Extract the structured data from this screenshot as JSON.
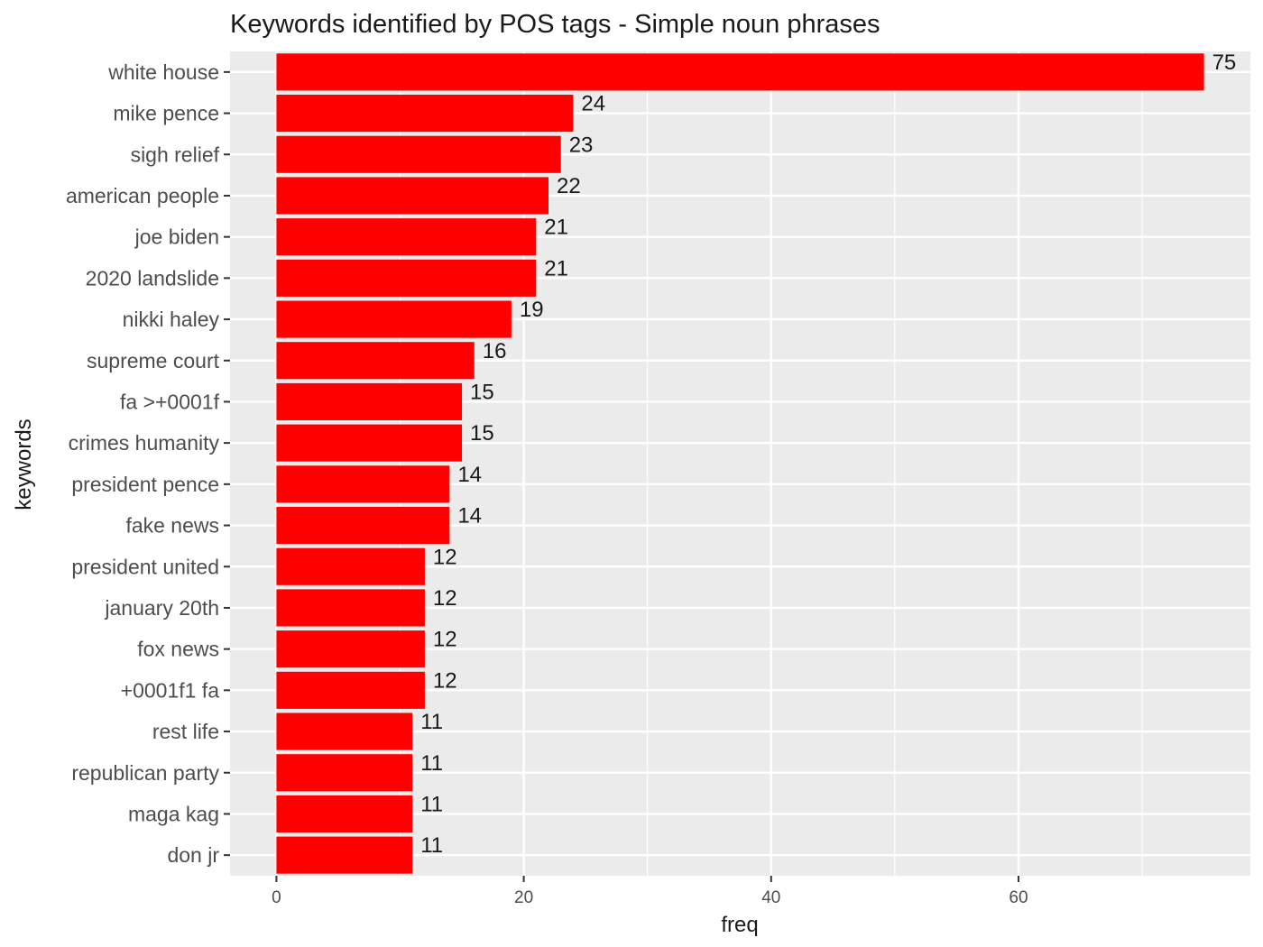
{
  "chart_data": {
    "type": "bar",
    "orientation": "horizontal",
    "title": "Keywords identified by POS tags - Simple noun phrases",
    "xlabel": "freq",
    "ylabel": "keywords",
    "xlim": [
      -3.75,
      78.75
    ],
    "xticks": [
      0,
      20,
      40,
      60
    ],
    "grid": true,
    "legend": "none",
    "bar_color": "#ff0000",
    "panel_color": "#ebebeb",
    "grid_color": "#ffffff",
    "categories": [
      "white house",
      "mike pence",
      "sigh relief",
      "american people",
      "joe biden",
      "2020 landslide",
      "nikki haley",
      "supreme court",
      "fa >+0001f",
      "crimes humanity",
      "president pence",
      "fake news",
      "president united",
      "january 20th",
      "fox news",
      "+0001f1 fa",
      "rest life",
      "republican party",
      "maga kag",
      "don jr"
    ],
    "values": [
      75,
      24,
      23,
      22,
      21,
      21,
      19,
      16,
      15,
      15,
      14,
      14,
      12,
      12,
      12,
      12,
      11,
      11,
      11,
      11
    ]
  }
}
